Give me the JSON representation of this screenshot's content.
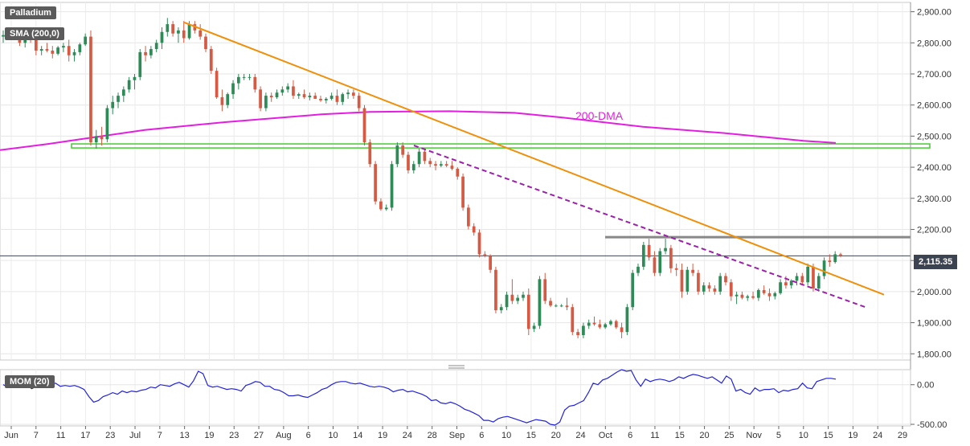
{
  "labels": {
    "symbol": "Palladium",
    "sma": "SMA (200,0)",
    "mom": "MOM (20)",
    "dma": "200-DMA",
    "last_price": "2,115.35"
  },
  "colors": {
    "up": "#2e8b57",
    "down": "#d65a43",
    "sma": "#e41ee0",
    "trend": "#f0900a",
    "dashed": "#9b1fa8",
    "resistance": "#888888",
    "support_zone": "#44cc33",
    "mom": "#2222dd"
  },
  "chart_data": [
    {
      "type": "candlestick",
      "title": "Palladium",
      "ylim": [
        1780,
        2930
      ],
      "x_ticks": [
        "Jun",
        "7",
        "11",
        "17",
        "23",
        "Jul",
        "7",
        "13",
        "19",
        "23",
        "27",
        "Aug",
        "6",
        "10",
        "14",
        "19",
        "24",
        "28",
        "Sep",
        "6",
        "10",
        "15",
        "20",
        "24",
        "Oct",
        "6",
        "11",
        "15",
        "20",
        "25",
        "Nov",
        "5",
        "10",
        "15",
        "19",
        "24",
        "29"
      ],
      "y_ticks": [
        "1,800.00",
        "1,900.00",
        "2,000.00",
        "2,100.00",
        "2,200.00",
        "2,300.00",
        "2,400.00",
        "2,500.00",
        "2,600.00",
        "2,700.00",
        "2,800.00",
        "2,900.00"
      ],
      "candles": [
        [
          2820,
          2840,
          2800,
          2825
        ],
        [
          2830,
          2845,
          2810,
          2840
        ],
        [
          2840,
          2850,
          2820,
          2830
        ],
        [
          2830,
          2840,
          2790,
          2800
        ],
        [
          2800,
          2820,
          2785,
          2815
        ],
        [
          2815,
          2830,
          2800,
          2810
        ],
        [
          2810,
          2820,
          2760,
          2775
        ],
        [
          2775,
          2790,
          2760,
          2780
        ],
        [
          2780,
          2800,
          2770,
          2775
        ],
        [
          2775,
          2790,
          2750,
          2765
        ],
        [
          2765,
          2790,
          2760,
          2785
        ],
        [
          2785,
          2800,
          2770,
          2790
        ],
        [
          2790,
          2810,
          2740,
          2760
        ],
        [
          2760,
          2780,
          2740,
          2770
        ],
        [
          2770,
          2800,
          2760,
          2795
        ],
        [
          2795,
          2830,
          2790,
          2820
        ],
        [
          2820,
          2840,
          2470,
          2480
        ],
        [
          2480,
          2520,
          2460,
          2500
        ],
        [
          2500,
          2530,
          2470,
          2490
        ],
        [
          2490,
          2600,
          2480,
          2590
        ],
        [
          2590,
          2630,
          2570,
          2610
        ],
        [
          2610,
          2640,
          2590,
          2630
        ],
        [
          2630,
          2660,
          2610,
          2650
        ],
        [
          2650,
          2690,
          2640,
          2680
        ],
        [
          2680,
          2700,
          2650,
          2690
        ],
        [
          2690,
          2780,
          2680,
          2770
        ],
        [
          2770,
          2790,
          2740,
          2760
        ],
        [
          2760,
          2790,
          2750,
          2780
        ],
        [
          2780,
          2810,
          2770,
          2800
        ],
        [
          2800,
          2850,
          2780,
          2835
        ],
        [
          2835,
          2880,
          2820,
          2860
        ],
        [
          2860,
          2870,
          2820,
          2830
        ],
        [
          2830,
          2850,
          2800,
          2840
        ],
        [
          2840,
          2870,
          2800,
          2815
        ],
        [
          2815,
          2870,
          2810,
          2860
        ],
        [
          2860,
          2870,
          2830,
          2840
        ],
        [
          2840,
          2860,
          2810,
          2820
        ],
        [
          2820,
          2830,
          2770,
          2780
        ],
        [
          2780,
          2790,
          2700,
          2710
        ],
        [
          2710,
          2720,
          2620,
          2625
        ],
        [
          2625,
          2650,
          2580,
          2600
        ],
        [
          2600,
          2640,
          2590,
          2635
        ],
        [
          2635,
          2680,
          2620,
          2670
        ],
        [
          2670,
          2700,
          2650,
          2690
        ],
        [
          2690,
          2700,
          2680,
          2690
        ],
        [
          2690,
          2700,
          2680,
          2690
        ],
        [
          2690,
          2700,
          2640,
          2650
        ],
        [
          2650,
          2660,
          2580,
          2590
        ],
        [
          2590,
          2640,
          2580,
          2630
        ],
        [
          2630,
          2640,
          2610,
          2625
        ],
        [
          2625,
          2650,
          2620,
          2640
        ],
        [
          2640,
          2660,
          2630,
          2650
        ],
        [
          2650,
          2670,
          2640,
          2660
        ],
        [
          2660,
          2680,
          2620,
          2630
        ],
        [
          2630,
          2640,
          2620,
          2635
        ],
        [
          2635,
          2650,
          2620,
          2625
        ],
        [
          2625,
          2640,
          2615,
          2630
        ],
        [
          2630,
          2640,
          2620,
          2620
        ],
        [
          2620,
          2630,
          2610,
          2615
        ],
        [
          2615,
          2625,
          2605,
          2620
        ],
        [
          2620,
          2640,
          2615,
          2630
        ],
        [
          2630,
          2650,
          2600,
          2610
        ],
        [
          2610,
          2640,
          2600,
          2635
        ],
        [
          2635,
          2650,
          2620,
          2640
        ],
        [
          2640,
          2650,
          2620,
          2630
        ],
        [
          2630,
          2640,
          2580,
          2590
        ],
        [
          2590,
          2600,
          2470,
          2480
        ],
        [
          2480,
          2490,
          2400,
          2410
        ],
        [
          2410,
          2420,
          2280,
          2290
        ],
        [
          2290,
          2300,
          2260,
          2265
        ],
        [
          2265,
          2280,
          2260,
          2270
        ],
        [
          2270,
          2420,
          2260,
          2410
        ],
        [
          2410,
          2480,
          2400,
          2470
        ],
        [
          2470,
          2480,
          2430,
          2440
        ],
        [
          2440,
          2450,
          2380,
          2390
        ],
        [
          2390,
          2420,
          2380,
          2410
        ],
        [
          2410,
          2460,
          2400,
          2450
        ],
        [
          2450,
          2460,
          2410,
          2420
        ],
        [
          2420,
          2430,
          2400,
          2410
        ],
        [
          2410,
          2420,
          2390,
          2405
        ],
        [
          2405,
          2420,
          2400,
          2410
        ],
        [
          2410,
          2420,
          2400,
          2405
        ],
        [
          2405,
          2420,
          2390,
          2395
        ],
        [
          2395,
          2400,
          2360,
          2370
        ],
        [
          2370,
          2380,
          2260,
          2270
        ],
        [
          2270,
          2280,
          2200,
          2210
        ],
        [
          2210,
          2220,
          2180,
          2190
        ],
        [
          2190,
          2200,
          2110,
          2120
        ],
        [
          2120,
          2130,
          2110,
          2115
        ],
        [
          2115,
          2120,
          2060,
          2070
        ],
        [
          2070,
          2080,
          1930,
          1940
        ],
        [
          1940,
          1960,
          1930,
          1950
        ],
        [
          1950,
          2000,
          1940,
          1990
        ],
        [
          1990,
          2040,
          1960,
          1970
        ],
        [
          1970,
          1990,
          1960,
          1980
        ],
        [
          1980,
          2000,
          1970,
          1990
        ],
        [
          1990,
          2010,
          1860,
          1880
        ],
        [
          1880,
          1900,
          1870,
          1890
        ],
        [
          1890,
          2050,
          1880,
          2040
        ],
        [
          2040,
          2060,
          1960,
          1970
        ],
        [
          1970,
          1980,
          1950,
          1955
        ],
        [
          1955,
          1960,
          1950,
          1955
        ],
        [
          1955,
          1960,
          1950,
          1955
        ],
        [
          1955,
          1980,
          1940,
          1950
        ],
        [
          1950,
          1960,
          1860,
          1870
        ],
        [
          1870,
          1880,
          1850,
          1860
        ],
        [
          1860,
          1900,
          1850,
          1890
        ],
        [
          1890,
          1910,
          1880,
          1900
        ],
        [
          1900,
          1920,
          1890,
          1895
        ],
        [
          1895,
          1910,
          1880,
          1885
        ],
        [
          1885,
          1900,
          1880,
          1895
        ],
        [
          1895,
          1910,
          1890,
          1905
        ],
        [
          1905,
          1910,
          1880,
          1885
        ],
        [
          1885,
          1900,
          1850,
          1870
        ],
        [
          1870,
          1960,
          1860,
          1950
        ],
        [
          1950,
          2070,
          1940,
          2060
        ],
        [
          2060,
          2090,
          2050,
          2080
        ],
        [
          2080,
          2160,
          2070,
          2150
        ],
        [
          2150,
          2170,
          2100,
          2110
        ],
        [
          2110,
          2130,
          2050,
          2060
        ],
        [
          2060,
          2140,
          2050,
          2130
        ],
        [
          2130,
          2170,
          2120,
          2140
        ],
        [
          2140,
          2150,
          2060,
          2075
        ],
        [
          2075,
          2090,
          2050,
          2070
        ],
        [
          2070,
          2090,
          1980,
          2000
        ],
        [
          2000,
          2080,
          1990,
          2070
        ],
        [
          2070,
          2090,
          2050,
          2060
        ],
        [
          2060,
          2070,
          1990,
          2000
        ],
        [
          2000,
          2030,
          1990,
          2020
        ],
        [
          2020,
          2030,
          2000,
          2010
        ],
        [
          2010,
          2020,
          1990,
          2000
        ],
        [
          2000,
          2060,
          1990,
          2050
        ],
        [
          2050,
          2060,
          2020,
          2030
        ],
        [
          2030,
          2040,
          1970,
          1985
        ],
        [
          1985,
          2000,
          1960,
          1990
        ],
        [
          1990,
          2000,
          1975,
          1980
        ],
        [
          1980,
          1990,
          1970,
          1985
        ],
        [
          1985,
          2000,
          1975,
          1980
        ],
        [
          1980,
          2010,
          1970,
          2005
        ],
        [
          2005,
          2020,
          1990,
          1995
        ],
        [
          1995,
          2010,
          1970,
          1985
        ],
        [
          1985,
          2000,
          1975,
          1995
        ],
        [
          1995,
          2040,
          1990,
          2030
        ],
        [
          2030,
          2050,
          2010,
          2020
        ],
        [
          2020,
          2040,
          2010,
          2035
        ],
        [
          2035,
          2060,
          2020,
          2050
        ],
        [
          2050,
          2060,
          2020,
          2030
        ],
        [
          2030,
          2090,
          2020,
          2080
        ],
        [
          2080,
          2090,
          2000,
          2010
        ],
        [
          2010,
          2060,
          2000,
          2050
        ],
        [
          2050,
          2110,
          2040,
          2100
        ],
        [
          2100,
          2120,
          2080,
          2095
        ],
        [
          2095,
          2130,
          2090,
          2120
        ],
        [
          2120,
          2125,
          2110,
          2115
        ]
      ]
    },
    {
      "type": "line",
      "title": "MOM (20)",
      "ylim": [
        -520,
        190
      ],
      "y_ticks": [
        "0.00",
        "-500.00"
      ],
      "values": [
        0,
        -30,
        -20,
        10,
        20,
        -10,
        -50,
        -20,
        -30,
        -10,
        0,
        20,
        -20,
        -10,
        -20,
        -10,
        -30,
        -60,
        -150,
        -220,
        -200,
        -150,
        -130,
        -100,
        -120,
        -80,
        -100,
        -80,
        -90,
        -70,
        -60,
        -30,
        -40,
        0,
        -10,
        -20,
        10,
        30,
        0,
        -30,
        50,
        170,
        140,
        -10,
        -30,
        -20,
        -40,
        -60,
        -50,
        -60,
        -80,
        -10,
        10,
        40,
        30,
        -20,
        -20,
        -60,
        -70,
        -100,
        -140,
        -140,
        -130,
        -150,
        -160,
        -130,
        -100,
        -60,
        -40,
        0,
        30,
        40,
        40,
        20,
        10,
        20,
        0,
        -20,
        -30,
        -20,
        -30,
        -50,
        -90,
        -70,
        -60,
        -90,
        -80,
        -100,
        -120,
        -150,
        -200,
        -190,
        -230,
        -240,
        -220,
        -240,
        -270,
        -310,
        -330,
        -360,
        -390,
        -450,
        -450,
        -470,
        -430,
        -410,
        -400,
        -420,
        -440,
        -460,
        -480,
        -460,
        -440,
        -450,
        -460,
        -500,
        -510,
        -470,
        -320,
        -270,
        -260,
        -230,
        -200,
        -100,
        20,
        0,
        60,
        80,
        120,
        160,
        190,
        170,
        180,
        60,
        -20,
        70,
        40,
        60,
        70,
        60,
        40,
        60,
        100,
        80,
        110,
        130,
        120,
        100,
        80,
        100,
        60,
        20,
        110,
        70,
        -80,
        -60,
        -100,
        -120,
        -40,
        -80,
        -60,
        -60,
        -50,
        -100,
        -70,
        -80,
        -60,
        -50,
        20,
        -40,
        -50,
        40,
        60,
        80,
        80,
        70
      ]
    }
  ]
}
